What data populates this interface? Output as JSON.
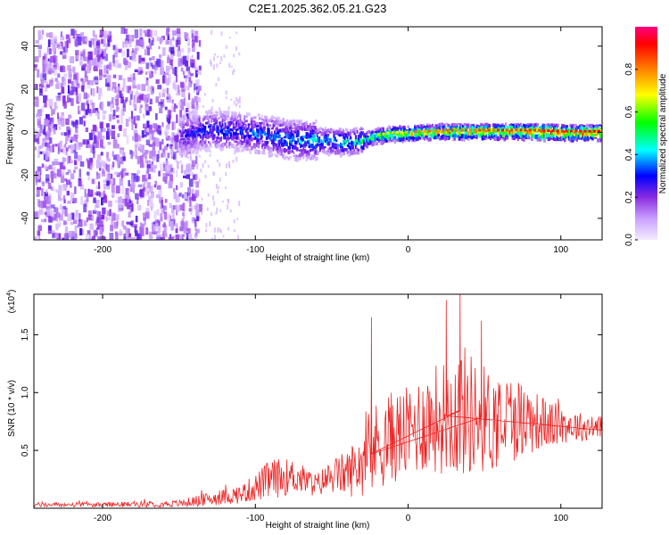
{
  "figure": {
    "title": "C2E1.2025.362.05.21.G23"
  },
  "chart_data": [
    {
      "type": "heatmap",
      "panel": "top",
      "xlabel": "Height of straight line (km)",
      "ylabel": "Frequency (Hz)",
      "xlim": [
        -245,
        127
      ],
      "ylim": [
        -50,
        49
      ],
      "xticks": [
        -200,
        -100,
        0,
        100
      ],
      "xtick_labels": [
        "-200",
        "-100",
        "0",
        "100"
      ],
      "yticks": [
        -40,
        -20,
        0,
        20,
        40
      ],
      "ytick_labels": [
        "-40",
        "-20",
        "0",
        "20",
        "40"
      ],
      "colorbar": {
        "label": "Normalized spectral amplitude",
        "range": [
          0,
          1
        ],
        "ticks": [
          0,
          0.2,
          0.4,
          0.6,
          0.8
        ],
        "tick_labels": [
          "0.0",
          "0.2",
          "0.4",
          "0.6",
          "0.8"
        ],
        "colormap": [
          "#f2e8ff",
          "#c8a8ff",
          "#8a2be2",
          "#0000ff",
          "#00ffff",
          "#00ff00",
          "#ffff00",
          "#ff8000",
          "#ff0000",
          "#ff0080"
        ]
      },
      "ridge": {
        "x": [
          -150,
          -130,
          -110,
          -90,
          -75,
          -60,
          -40,
          -30,
          -20,
          -10,
          0,
          20,
          50,
          80,
          100,
          127
        ],
        "freq": [
          -1,
          2,
          1,
          -1,
          -3,
          -3,
          -4,
          -3,
          -1,
          0,
          0,
          1,
          1,
          1,
          0.5,
          0.5
        ],
        "amplitude": [
          0.3,
          0.35,
          0.35,
          0.4,
          0.45,
          0.45,
          0.5,
          0.55,
          0.65,
          0.7,
          0.75,
          0.8,
          0.85,
          0.9,
          0.92,
          0.95
        ]
      },
      "noise_region": {
        "xmin": -245,
        "xmax": -145,
        "amplitude": 0.15
      }
    },
    {
      "type": "line",
      "panel": "bottom",
      "xlabel": "Height of straight line (km)",
      "ylabel": "SNR (10 * v/v)",
      "scale_label": "(x10",
      "scale_exponent": "4",
      "xlim": [
        -245,
        127
      ],
      "ylim": [
        0,
        1.85
      ],
      "xticks": [
        -200,
        -100,
        0,
        100
      ],
      "xtick_labels": [
        "-200",
        "-100",
        "0",
        "100"
      ],
      "yticks": [
        0.5,
        1.0,
        1.5
      ],
      "ytick_labels": [
        "0.5",
        "1.0",
        "1.5"
      ],
      "line_color": "#ee2222",
      "series": [
        {
          "name": "SNR",
          "x": [
            -245,
            -200,
            -150,
            -130,
            -110,
            -100,
            -90,
            -75,
            -60,
            -50,
            -40,
            -30,
            -25,
            -20,
            -10,
            0,
            10,
            25,
            35,
            45,
            55,
            65,
            75,
            85,
            95,
            105,
            115,
            127
          ],
          "mean": [
            0.03,
            0.03,
            0.04,
            0.08,
            0.12,
            0.18,
            0.25,
            0.28,
            0.2,
            0.28,
            0.3,
            0.4,
            0.45,
            0.55,
            0.62,
            0.65,
            0.75,
            0.8,
            0.85,
            0.8,
            0.75,
            0.78,
            0.78,
            0.75,
            0.72,
            0.72,
            0.7,
            0.7
          ],
          "spread": [
            0.02,
            0.02,
            0.03,
            0.06,
            0.08,
            0.12,
            0.18,
            0.15,
            0.1,
            0.15,
            0.2,
            0.3,
            0.35,
            0.4,
            0.4,
            0.4,
            0.45,
            0.5,
            0.6,
            0.5,
            0.45,
            0.4,
            0.35,
            0.25,
            0.2,
            0.15,
            0.12,
            0.12
          ]
        }
      ],
      "peaks": [
        {
          "x": 25,
          "value": 1.8
        },
        {
          "x": 34,
          "value": 1.85
        },
        {
          "x": -24,
          "value": 1.65
        },
        {
          "x": 48,
          "value": 1.62
        }
      ]
    }
  ]
}
